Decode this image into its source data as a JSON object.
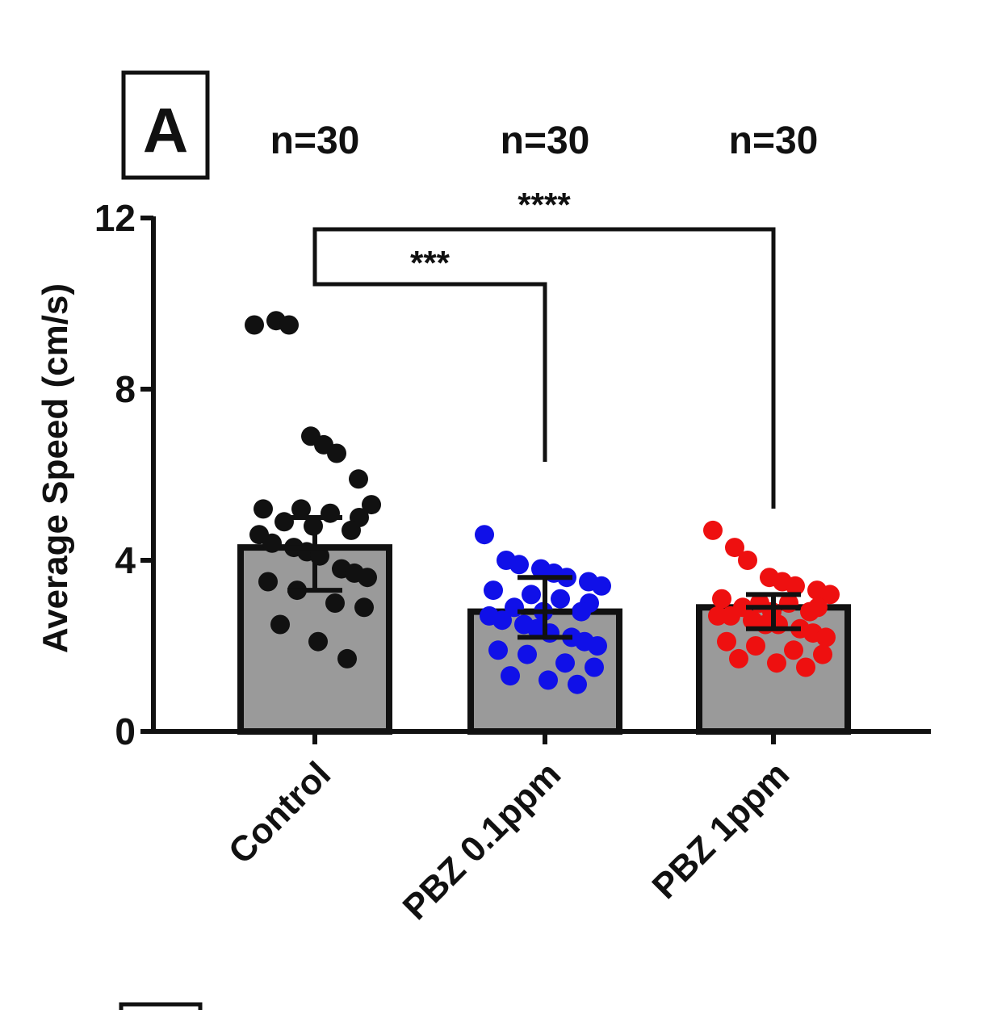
{
  "panel": {
    "label": "A"
  },
  "chart_data": {
    "type": "bar",
    "title": "",
    "xlabel": "",
    "ylabel": "Average Speed (cm/s)",
    "ylim": [
      0,
      12
    ],
    "yticks": [
      "0",
      "4",
      "8",
      "12"
    ],
    "grid": false,
    "legend": "none",
    "categories": [
      "Control",
      "PBZ 0.1ppm",
      "PBZ 1ppm"
    ],
    "sample_sizes": [
      "n=30",
      "n=30",
      "n=30"
    ],
    "values": [
      4.3,
      2.8,
      2.9
    ],
    "error": [
      {
        "low": 3.3,
        "high": 5.0
      },
      {
        "low": 2.2,
        "high": 3.6
      },
      {
        "low": 2.4,
        "high": 3.2
      }
    ],
    "colors": {
      "bar_fill": "#9a9a9a",
      "bar_stroke": "#111111",
      "points": [
        "#111111",
        "#1010e8",
        "#ee1010"
      ]
    },
    "points": [
      [
        9.5,
        9.6,
        9.5,
        6.9,
        6.7,
        6.5,
        5.9,
        5.3,
        5.2,
        5.2,
        5.1,
        5.0,
        4.9,
        4.8,
        4.7,
        4.6,
        4.4,
        4.3,
        4.2,
        4.1,
        3.8,
        3.7,
        3.6,
        3.5,
        3.3,
        3.0,
        2.9,
        2.5,
        2.1,
        1.7
      ],
      [
        4.6,
        4.0,
        3.9,
        3.8,
        3.7,
        3.6,
        3.5,
        3.4,
        3.3,
        3.2,
        3.1,
        3.0,
        2.9,
        2.8,
        2.8,
        2.7,
        2.6,
        2.5,
        2.4,
        2.3,
        2.2,
        2.1,
        2.0,
        1.9,
        1.8,
        1.6,
        1.5,
        1.3,
        1.2,
        1.1
      ],
      [
        4.7,
        4.3,
        4.0,
        3.6,
        3.5,
        3.4,
        3.3,
        3.2,
        3.1,
        3.0,
        3.0,
        2.9,
        2.9,
        2.8,
        2.8,
        2.7,
        2.7,
        2.6,
        2.5,
        2.5,
        2.4,
        2.3,
        2.2,
        2.1,
        2.0,
        1.9,
        1.8,
        1.7,
        1.6,
        1.5
      ]
    ],
    "significance": [
      {
        "from": 0,
        "to": 1,
        "label": "***"
      },
      {
        "from": 0,
        "to": 2,
        "label": "****"
      }
    ]
  }
}
